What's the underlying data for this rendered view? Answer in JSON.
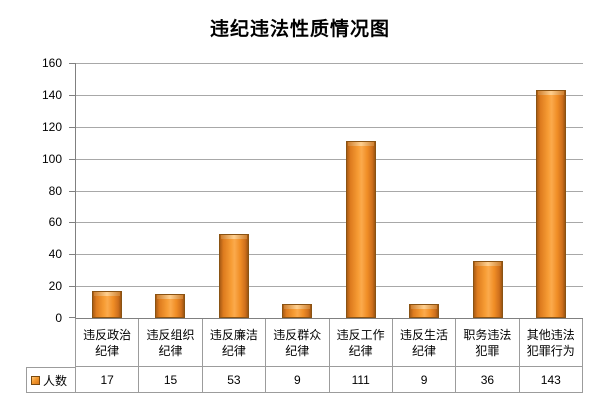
{
  "chart_data": {
    "type": "bar",
    "title": "违纪违法性质情况图",
    "categories": [
      "违反政治纪律",
      "违反组织纪律",
      "违反廉洁纪律",
      "违反群众纪律",
      "违反工作纪律",
      "违反生活纪律",
      "职务违法犯罪",
      "其他违法犯罪行为"
    ],
    "category_lines": [
      [
        "违反政治",
        "纪律"
      ],
      [
        "违反组织",
        "纪律"
      ],
      [
        "违反廉洁",
        "纪律"
      ],
      [
        "违反群众",
        "纪律"
      ],
      [
        "违反工作",
        "纪律"
      ],
      [
        "违反生活",
        "纪律"
      ],
      [
        "职务违法",
        "犯罪"
      ],
      [
        "其他违法",
        "犯罪行为"
      ]
    ],
    "series": [
      {
        "name": "人数",
        "values": [
          17,
          15,
          53,
          9,
          111,
          9,
          36,
          143
        ]
      }
    ],
    "xlabel": "",
    "ylabel": "",
    "ylim": [
      0,
      160
    ],
    "yticks": [
      0,
      20,
      40,
      60,
      80,
      100,
      120,
      140,
      160
    ],
    "grid": true,
    "legend_position": "bottom-left-table",
    "colors": {
      "bar_fill": "#F79D35",
      "bar_edge": "#8A5313",
      "bar_highlight": "#FFCF8E",
      "gridline": "#A8A8A8",
      "axis": "#808080",
      "table_border": "#9C9C9C",
      "text": "#000000",
      "background": "#FFFFFF"
    }
  }
}
